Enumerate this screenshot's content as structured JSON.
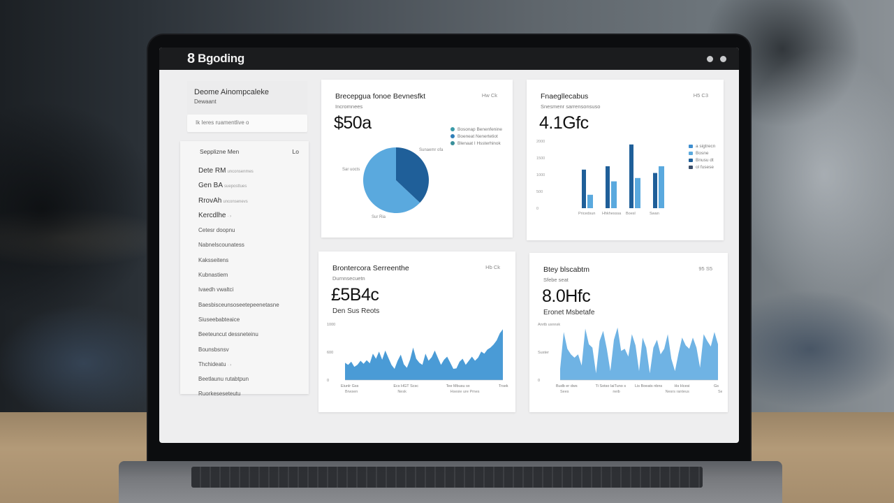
{
  "app": {
    "logo": "8",
    "name": "Bgoding",
    "window_icons": [
      "settings-icon",
      "user-icon"
    ]
  },
  "sidebar": {
    "title": "Deome Ainompcaleke",
    "subtitle": "Dewaant",
    "search_placeholder": "Ik  Ieres ruamentlive o",
    "nav_header": {
      "label": "Sepplizne Men",
      "count": "Lo"
    },
    "items": [
      {
        "label": "Dete RM",
        "suffix": "unconsenmes",
        "big": true
      },
      {
        "label": "Gen BA",
        "suffix": "sueposttues",
        "big": true
      },
      {
        "label": "RrovAh",
        "suffix": "unconsenevs",
        "big": true
      },
      {
        "label": "Kercdlhe",
        "suffix": "· ›",
        "big": true
      },
      {
        "label": "Cetesr doopnu",
        "suffix": "",
        "big": false
      },
      {
        "label": "Nabnelscounatess",
        "suffix": "",
        "big": false
      },
      {
        "label": "Kaksseitens",
        "suffix": "",
        "big": false
      },
      {
        "label": "Kubnastiem",
        "suffix": "",
        "big": false
      },
      {
        "label": "Ivaedh vwaltci",
        "suffix": "",
        "big": false
      },
      {
        "label": "Baesbisceunsoseetepeenetasne",
        "suffix": "",
        "big": false
      },
      {
        "label": "Siuseebabteaice",
        "suffix": "",
        "big": false
      },
      {
        "label": "Beeteuncut dessneteinu",
        "suffix": "",
        "big": false
      },
      {
        "label": "Bounsbsnsv",
        "suffix": "",
        "big": false
      },
      {
        "label": "Thchideatu",
        "suffix": "· ›",
        "big": false
      },
      {
        "label": "Beetlaunu rutabtpun",
        "suffix": "",
        "big": false
      },
      {
        "label": "Ruorkeseseteutu",
        "suffix": "",
        "big": false
      }
    ]
  },
  "cards": {
    "pie": {
      "title": "Brecepgua fonoe Bevnesfkt",
      "subtitle": "Incromnees",
      "value": "$50a",
      "meta": "Hw Ck",
      "legend": [
        "Bosonap Benenfenine",
        "Boeneat Nenertetiot",
        "Blenaat I Hssterhinok"
      ],
      "slice_labels": [
        "Sunaemr ofa",
        "Sar uocts",
        "Sur Ria"
      ]
    },
    "bars": {
      "title": "Fnaegllecabus",
      "subtitle": "Snesmenr sarrensonsuso",
      "value": "4.1Gfc",
      "meta": "H5 C3",
      "legend": [
        "a sigtrecn",
        "Bosne",
        "Bnusu dt",
        "ol fusese"
      ],
      "y_ticks": [
        "2000",
        "1500",
        "1000",
        "500",
        "0"
      ],
      "categories": [
        "Pricedsun",
        "Hhkhesssa",
        "Boesl",
        "Swan"
      ]
    },
    "area1": {
      "title": "Brontercora Serreenthe",
      "subtitle": "Durnnsecuetn",
      "value": "£5B4c",
      "caption": "Den Sus Reots",
      "meta": "Hb Ck",
      "y_ticks": [
        "1000",
        "600",
        "0"
      ],
      "x_ticks": [
        "Eiunlr Gss",
        "Ecs HGT Scsc",
        "Tee Mbusu sx",
        "Trsek"
      ],
      "x_sub": [
        "Brwsen",
        "Nesk",
        "Hsesie ure  Pmes",
        ""
      ]
    },
    "area2": {
      "title": "Btey blscabtm",
      "subtitle": "Sfebe seat",
      "value": "8.0Hfc",
      "caption": "Eronet Msbetafe",
      "meta": "95 S5",
      "y_ticks": [
        "Anrtb usnnsk",
        "Suster",
        "0"
      ],
      "x_ticks": [
        "Budb er dws",
        "Ti Sotso laiTuno s",
        "Lis Boeats nbns",
        "Hs Hcesi",
        "Gs"
      ],
      "x_sub": [
        "Sees",
        "neib",
        "Nesrs ranteus",
        "Ses"
      ]
    }
  },
  "colors": {
    "dark_blue": "#1f5f99",
    "mid_blue": "#3f8fd0",
    "light_blue": "#5aa9de",
    "topbar": "#1b1c1e"
  },
  "chart_data": [
    {
      "type": "pie",
      "title": "Brecepgua fonoe Bevnesfkt",
      "categories": [
        "Light segment",
        "Dark segment"
      ],
      "values": [
        63,
        37
      ],
      "legend": [
        "Bosonap Benenfenine",
        "Boeneat Nenertetiot",
        "Blenaat I Hssterhinok"
      ],
      "legend_position": "right"
    },
    {
      "type": "bar",
      "title": "Fnaegllecabus",
      "categories": [
        "Pricedsun",
        "Hhkhesssa",
        "Boesl",
        "Swan"
      ],
      "series": [
        {
          "name": "Series A (dark)",
          "values": [
            1150,
            1250,
            1900,
            1050
          ]
        },
        {
          "name": "Series B (light)",
          "values": [
            400,
            800,
            900,
            1250
          ]
        }
      ],
      "ylim": [
        0,
        2000
      ],
      "y_ticks": [
        0,
        500,
        1000,
        1500,
        2000
      ],
      "legend_position": "right"
    },
    {
      "type": "area",
      "title": "Brontercora Serreenthe",
      "values": [
        340,
        300,
        360,
        260,
        300,
        380,
        320,
        390,
        330,
        520,
        420,
        560,
        400,
        580,
        440,
        300,
        220,
        380,
        500,
        310,
        240,
        400,
        640,
        420,
        340,
        300,
        520,
        380,
        450,
        580,
        440,
        300,
        400,
        460,
        340,
        220,
        230,
        360,
        420,
        300,
        380,
        460,
        380,
        440,
        560,
        520,
        600,
        640,
        700,
        780,
        920,
        1000
      ],
      "ylim": [
        0,
        1100
      ],
      "y_ticks": [
        "0",
        "600",
        "1000"
      ],
      "grid": false
    },
    {
      "type": "area",
      "title": "Btey blscabtm",
      "values": [
        200,
        860,
        560,
        460,
        400,
        460,
        260,
        920,
        640,
        580,
        120,
        700,
        880,
        560,
        160,
        720,
        940,
        520,
        560,
        420,
        820,
        620,
        160,
        760,
        580,
        120,
        580,
        720,
        460,
        560,
        820,
        380,
        160,
        480,
        760,
        620,
        560,
        760,
        580,
        220,
        820,
        700,
        600,
        860,
        640
      ],
      "ylim": [
        0,
        1000
      ],
      "grid": false
    }
  ]
}
